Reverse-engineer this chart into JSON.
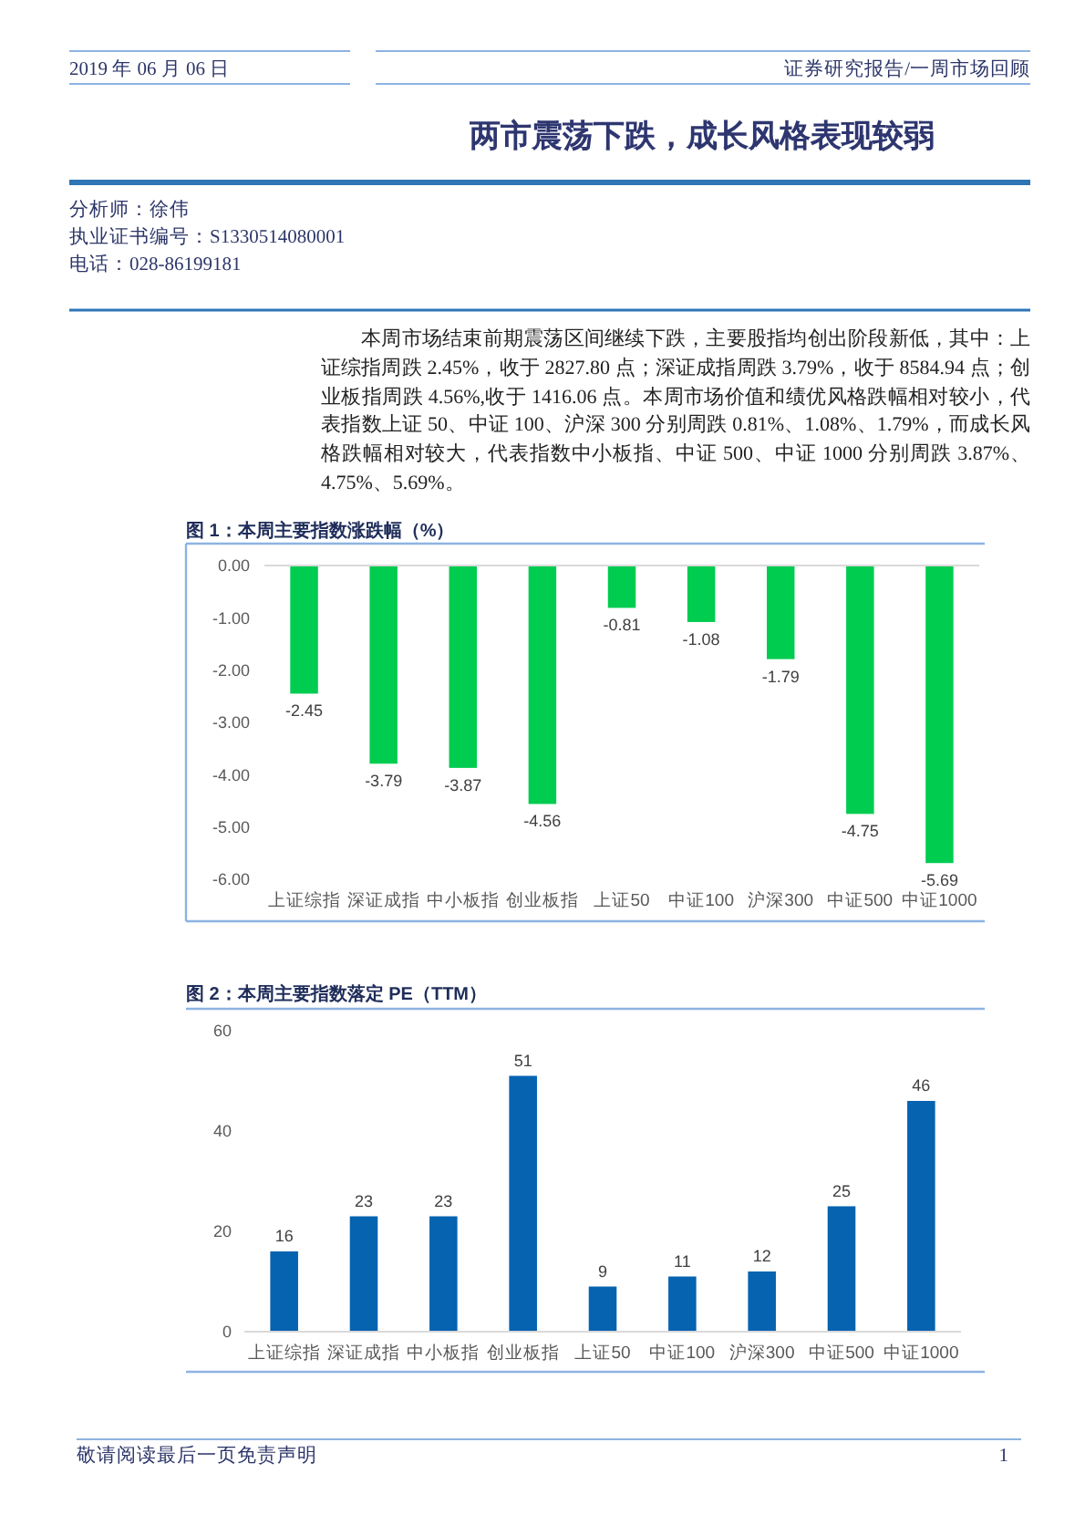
{
  "chart_data": [
    {
      "type": "other",
      "title": "两市震荡下跌，成长风格表现较弱",
      "annotations": [
        "2019 年 06 月 06 日",
        "证券研究报告/一周市场回顾",
        "分析师：徐伟",
        "执业证书编号：S1330514080001",
        "电话：028-86199181",
        "本周市场结束前期震荡区间继续下跌，主要股指均创出阶段新低，其中：上证综指周跌 2.45%，收于 2827.80 点；深证成指周跌 3.79%，收于 8584.94 点；创业板指周跌 4.56%,收于 1416.06 点。本周市场价值和绩优风格跌幅相对较小，代表指数上证 50、中证 100、沪深 300 分别周跌 0.81%、1.08%、1.79%，而成长风格跌幅相对较大，代表指数中小板指、中证 500、中证 1000 分别周跌 3.87%、4.75%、5.69%。",
        "敬请阅读最后一页免责声明",
        "1"
      ]
    },
    {
      "type": "bar",
      "title": "图 1：本周主要指数涨跌幅（%）",
      "categories": [
        "上证综指",
        "深证成指",
        "中小板指",
        "创业板指",
        "上证50",
        "中证100",
        "沪深300",
        "中证500",
        "中证1000"
      ],
      "values": [
        -2.45,
        -3.79,
        -3.87,
        -4.56,
        -0.81,
        -1.08,
        -1.79,
        -4.75,
        -5.69
      ],
      "color": "#00cc50",
      "ylim": [
        -6,
        0
      ],
      "yticks": [
        {
          "value": 0,
          "label": "0.00"
        },
        {
          "value": -1,
          "label": "-1.00"
        },
        {
          "value": -2,
          "label": "-2.00"
        },
        {
          "value": -3,
          "label": "-3.00"
        },
        {
          "value": -4,
          "label": "-4.00"
        },
        {
          "value": -5,
          "label": "-5.00"
        },
        {
          "value": -6,
          "label": "-6.00"
        }
      ],
      "data_labels": true
    },
    {
      "type": "bar",
      "title": "图 2：本周主要指数落定 PE（TTM）",
      "categories": [
        "上证综指",
        "深证成指",
        "中小板指",
        "创业板指",
        "上证50",
        "中证100",
        "沪深300",
        "中证500",
        "中证1000"
      ],
      "values": [
        16,
        23,
        23,
        51,
        9,
        11,
        12,
        25,
        46
      ],
      "color": "#0563b0",
      "ylim": [
        0,
        60
      ],
      "yticks": [
        0,
        20,
        40,
        60
      ],
      "data_labels": true
    }
  ]
}
